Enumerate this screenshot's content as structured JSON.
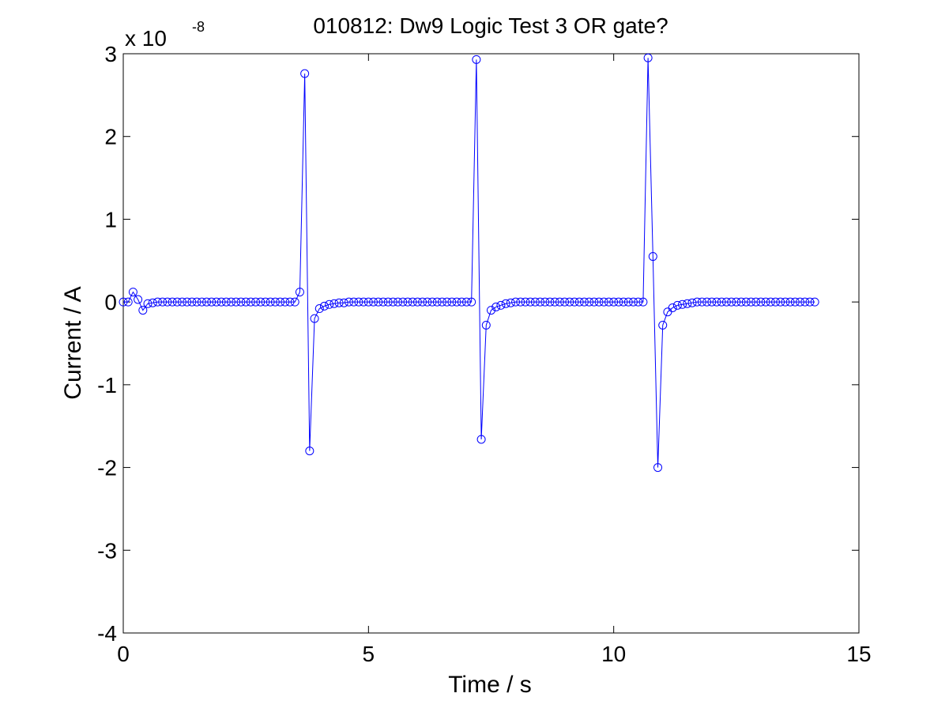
{
  "chart_data": {
    "type": "line",
    "title": "010812: Dw9 Logic Test 3 OR gate?",
    "xlabel": "Time / s",
    "ylabel": "Current / A",
    "y_multiplier_base": "x 10",
    "y_multiplier_exponent": "-8",
    "xlim": [
      0,
      15
    ],
    "ylim": [
      -4,
      3
    ],
    "x_ticks": [
      0,
      5,
      10,
      15
    ],
    "x_tick_labels": [
      "0",
      "5",
      "10",
      "15"
    ],
    "y_ticks": [
      -4,
      -3,
      -2,
      -1,
      0,
      1,
      2,
      3
    ],
    "y_tick_labels": [
      "-4",
      "-3",
      "-2",
      "-1",
      "0",
      "1",
      "2",
      "3"
    ],
    "grid": false,
    "marker": "circle",
    "line_color": "#0000ff",
    "series": [
      {
        "x": [
          0,
          0.1,
          0.2,
          0.3,
          0.4,
          0.5,
          0.6,
          0.7,
          0.8,
          0.9,
          1.0,
          1.1,
          1.2,
          1.3,
          1.4,
          1.5,
          1.6,
          1.7,
          1.8,
          1.9,
          2.0,
          2.1,
          2.2,
          2.3,
          2.4,
          2.5,
          2.6,
          2.7,
          2.8,
          2.9,
          3.0,
          3.1,
          3.2,
          3.3,
          3.4,
          3.5,
          3.6,
          3.7,
          3.8,
          3.9,
          4.0,
          4.1,
          4.2,
          4.3,
          4.4,
          4.5,
          4.6,
          4.7,
          4.8,
          4.9,
          5.0,
          5.1,
          5.2,
          5.3,
          5.4,
          5.5,
          5.6,
          5.7,
          5.8,
          5.9,
          6.0,
          6.1,
          6.2,
          6.3,
          6.4,
          6.5,
          6.6,
          6.7,
          6.8,
          6.9,
          7.0,
          7.1,
          7.2,
          7.3,
          7.4,
          7.5,
          7.6,
          7.7,
          7.8,
          7.9,
          8.0,
          8.1,
          8.2,
          8.3,
          8.4,
          8.5,
          8.6,
          8.7,
          8.8,
          8.9,
          9.0,
          9.1,
          9.2,
          9.3,
          9.4,
          9.5,
          9.6,
          9.7,
          9.8,
          9.9,
          10.0,
          10.1,
          10.2,
          10.3,
          10.4,
          10.5,
          10.6,
          10.7,
          10.8,
          10.9,
          11.0,
          11.1,
          11.2,
          11.3,
          11.4,
          11.5,
          11.6,
          11.7,
          11.8,
          11.9,
          12.0,
          12.1,
          12.2,
          12.3,
          12.4,
          12.5,
          12.6,
          12.7,
          12.8,
          12.9,
          13.0,
          13.1,
          13.2,
          13.3,
          13.4,
          13.5,
          13.6,
          13.7,
          13.8,
          13.9,
          14.0,
          14.1
        ],
        "y": [
          0,
          0,
          0.12,
          0.03,
          -0.1,
          -0.02,
          -0.01,
          0,
          0,
          0,
          0,
          0,
          0,
          0,
          0,
          0,
          0,
          0,
          0,
          0,
          0,
          0,
          0,
          0,
          0,
          0,
          0,
          0,
          0,
          0,
          0,
          0,
          0,
          0,
          0,
          0,
          0.12,
          2.76,
          -1.8,
          -0.2,
          -0.08,
          -0.05,
          -0.03,
          -0.02,
          -0.01,
          -0.01,
          0,
          0,
          0,
          0,
          0,
          0,
          0,
          0,
          0,
          0,
          0,
          0,
          0,
          0,
          0,
          0,
          0,
          0,
          0,
          0,
          0,
          0,
          0,
          0,
          0,
          0,
          2.93,
          -1.66,
          -0.28,
          -0.1,
          -0.06,
          -0.04,
          -0.02,
          -0.01,
          0,
          0,
          0,
          0,
          0,
          0,
          0,
          0,
          0,
          0,
          0,
          0,
          0,
          0,
          0,
          0,
          0,
          0,
          0,
          0,
          0,
          0,
          0,
          0,
          0,
          0,
          0,
          2.95,
          0.55,
          -2.0,
          -0.28,
          -0.12,
          -0.07,
          -0.04,
          -0.03,
          -0.02,
          -0.01,
          0,
          0,
          0,
          0,
          0,
          0,
          0,
          0,
          0,
          0,
          0,
          0,
          0,
          0,
          0,
          0,
          0,
          0,
          0,
          0,
          0,
          0,
          0,
          0,
          0
        ]
      }
    ]
  }
}
